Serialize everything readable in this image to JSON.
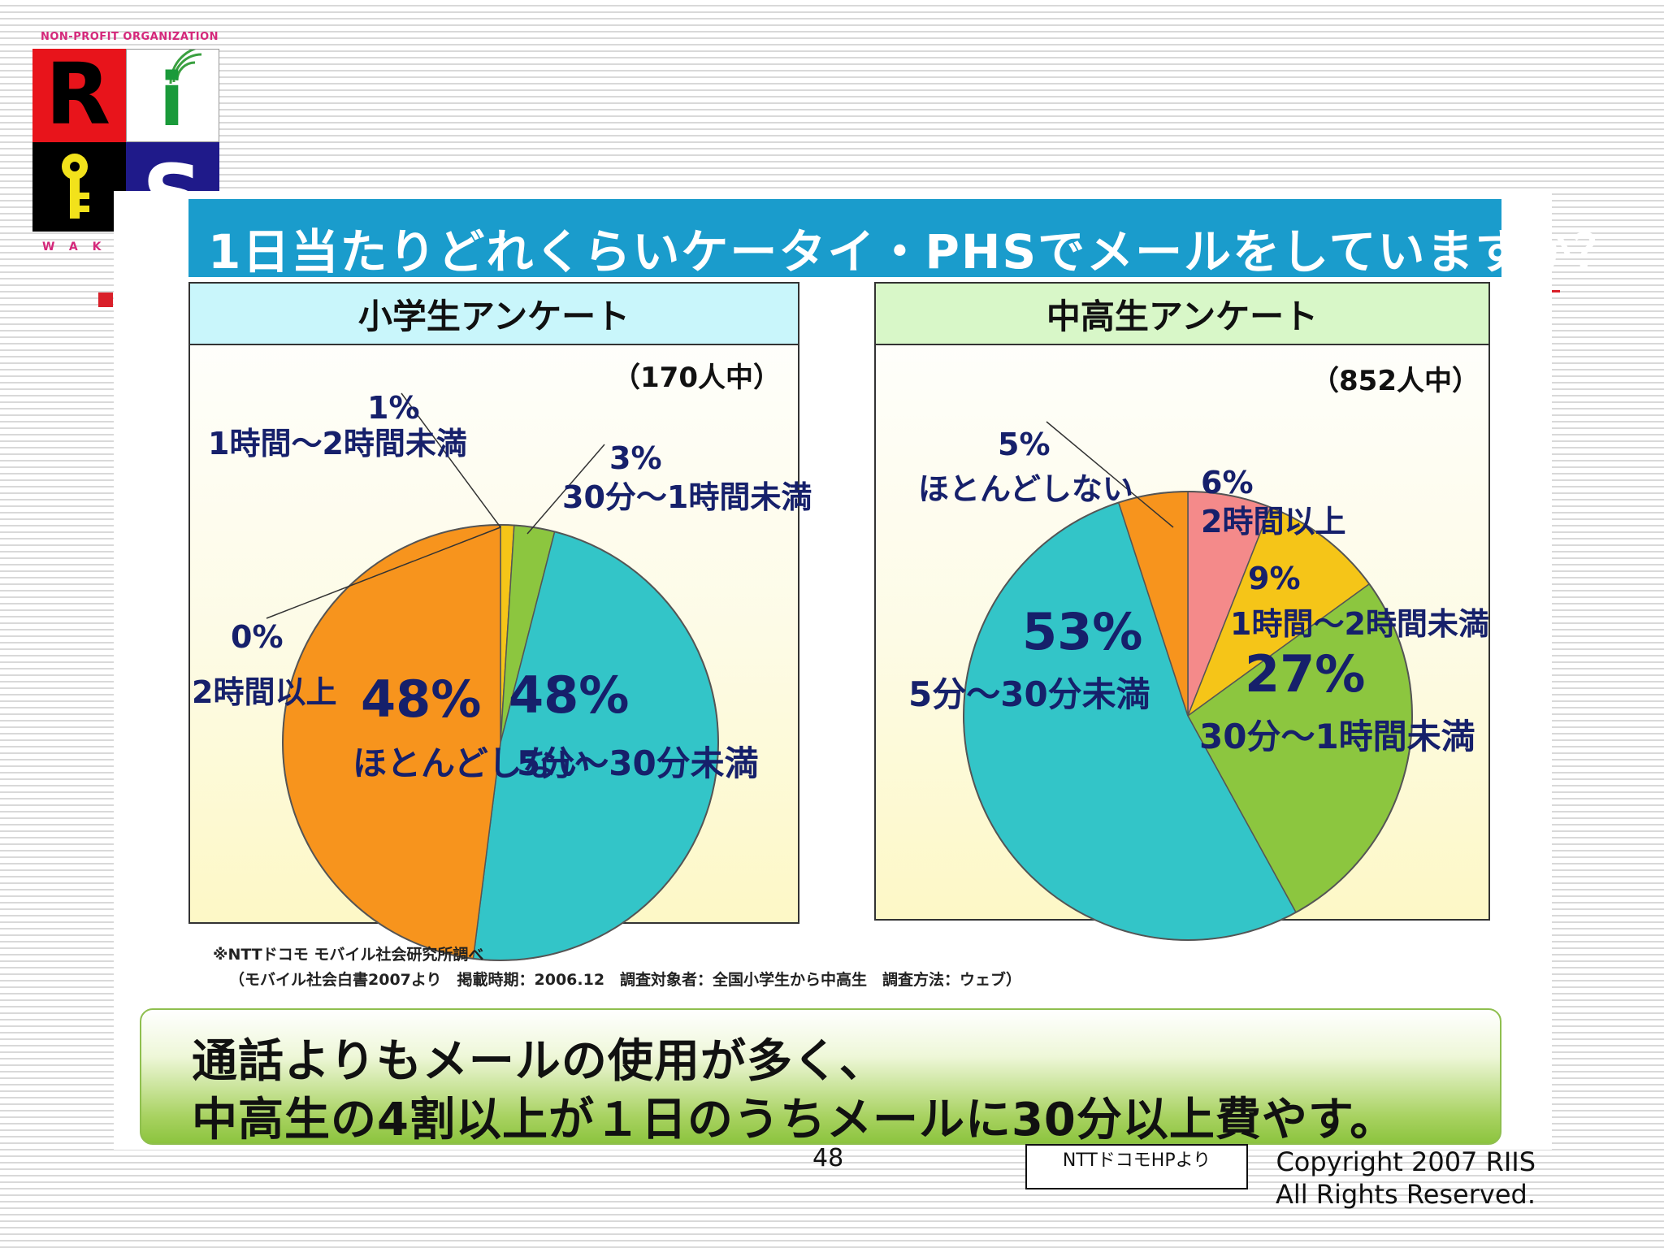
{
  "logo": {
    "org": "Non-Profit Organization",
    "letter_r": "R",
    "letter_i": "i",
    "letter_s": "S",
    "key_icon": "key-icon",
    "signal_icon": "wifi-signal-icon",
    "sub": "WAK"
  },
  "slide": {
    "title": "1日当たりどれくらいケータイ・PHSでメールをしていますか？",
    "source_line1": "※NTTドコモ モバイル社会研究所調べ",
    "source_line2": "（モバイル社会白書2007より　掲載時期：2006.12　調査対象者：全国小学生から中高生　調査方法：ウェブ）",
    "summary_line1": "通話よりもメールの使用が多く、",
    "summary_line2": "中高生の4割以上が１日のうちメールに30分以上費やす。"
  },
  "chart_data": [
    {
      "type": "pie",
      "title": "小学生アンケート",
      "respondents": "（170人中）",
      "slices": [
        {
          "label": "2時間以上",
          "value": 0,
          "display": "0%",
          "color": "#f08a8a"
        },
        {
          "label": "1時間～2時間未満",
          "value": 1,
          "display": "1%",
          "color": "#f5c518"
        },
        {
          "label": "30分～1時間未満",
          "value": 3,
          "display": "3%",
          "color": "#8cc63f"
        },
        {
          "label": "5分～30分未満",
          "value": 48,
          "display": "48%",
          "color": "#33c5c8"
        },
        {
          "label": "ほとんどしない",
          "value": 48,
          "display": "48%",
          "color": "#f7941d"
        }
      ]
    },
    {
      "type": "pie",
      "title": "中高生アンケート",
      "respondents": "（852人中）",
      "slices": [
        {
          "label": "2時間以上",
          "value": 6,
          "display": "6%",
          "color": "#f48a8a"
        },
        {
          "label": "1時間～2時間未満",
          "value": 9,
          "display": "9%",
          "color": "#f5c518"
        },
        {
          "label": "30分～1時間未満",
          "value": 27,
          "display": "27%",
          "color": "#8cc63f"
        },
        {
          "label": "5分～30分未満",
          "value": 53,
          "display": "53%",
          "color": "#33c5c8"
        },
        {
          "label": "ほとんどしない",
          "value": 5,
          "display": "5%",
          "color": "#f7941d"
        }
      ]
    }
  ],
  "footer": {
    "page": "48",
    "note": "NTTドコモHPより",
    "copyright_line1": "Copyright 2007 RIIS",
    "copyright_line2": "All Rights Reserved."
  }
}
